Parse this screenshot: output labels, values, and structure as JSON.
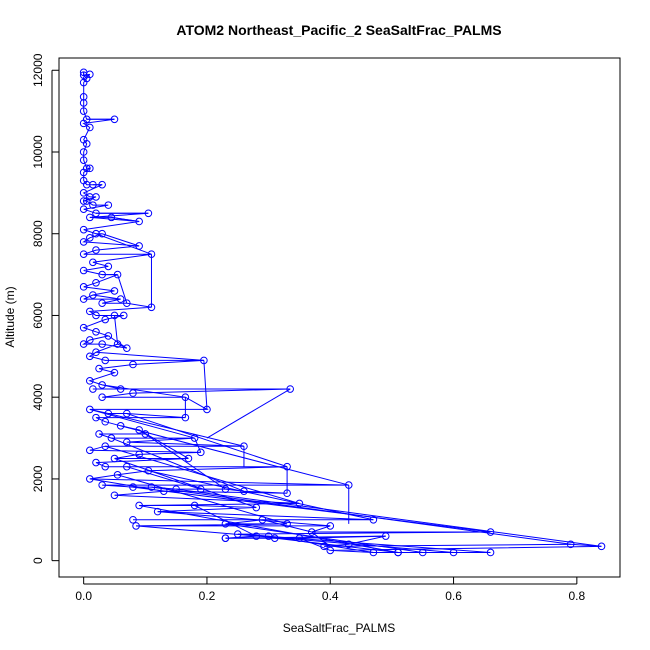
{
  "chart_data": {
    "type": "line",
    "title": "ATOM2 Northeast_Pacific_2 SeaSaltFrac_PALMS",
    "xlabel": "SeaSaltFrac_PALMS",
    "ylabel": "Altitude (m)",
    "xlim": [
      -0.04,
      0.87
    ],
    "ylim": [
      -400,
      12300
    ],
    "x_ticks": [
      0.0,
      0.2,
      0.4,
      0.6,
      0.8
    ],
    "x_tick_labels": [
      "0.0",
      "0.2",
      "0.4",
      "0.6",
      "0.8"
    ],
    "y_ticks": [
      0,
      2000,
      4000,
      6000,
      8000,
      10000,
      12000
    ],
    "y_tick_labels": [
      "0",
      "2000",
      "4000",
      "6000",
      "8000",
      "10000",
      "12000"
    ],
    "series": [
      {
        "color": "#0000ff",
        "marker": "open-circle",
        "points": [
          [
            0.0,
            11950
          ],
          [
            0.0,
            11880
          ],
          [
            0.005,
            11800
          ],
          [
            0.01,
            11900
          ],
          [
            0.0,
            11700
          ],
          [
            0.0,
            11350
          ],
          [
            0.0,
            11200
          ],
          [
            0.0,
            11000
          ],
          [
            0.005,
            10800
          ],
          [
            0.05,
            10800
          ],
          [
            0.0,
            10700
          ],
          [
            0.01,
            10600
          ],
          [
            0.0,
            10300
          ],
          [
            0.005,
            10200
          ],
          [
            0.0,
            10000
          ],
          [
            0.0,
            9800
          ],
          [
            0.005,
            9600
          ],
          [
            0.01,
            9600
          ],
          [
            0.0,
            9500
          ],
          [
            0.0,
            9300
          ],
          [
            0.005,
            9200
          ],
          [
            0.015,
            9200
          ],
          [
            0.03,
            9200
          ],
          [
            0.0,
            9000
          ],
          [
            0.01,
            8900
          ],
          [
            0.02,
            8900
          ],
          [
            0.0,
            8800
          ],
          [
            0.005,
            8800
          ],
          [
            0.015,
            8700
          ],
          [
            0.04,
            8700
          ],
          [
            0.0,
            8600
          ],
          [
            0.02,
            8500
          ],
          [
            0.105,
            8500
          ],
          [
            0.01,
            8400
          ],
          [
            0.045,
            8400
          ],
          [
            0.09,
            8300
          ],
          [
            0.0,
            8100
          ],
          [
            0.02,
            8000
          ],
          [
            0.03,
            8000
          ],
          [
            0.01,
            7900
          ],
          [
            0.0,
            7800
          ],
          [
            0.09,
            7700
          ],
          [
            0.02,
            7600
          ],
          [
            0.0,
            7500
          ],
          [
            0.11,
            7500
          ],
          [
            0.015,
            7300
          ],
          [
            0.04,
            7200
          ],
          [
            0.0,
            7100
          ],
          [
            0.03,
            7000
          ],
          [
            0.055,
            7000
          ],
          [
            0.02,
            6800
          ],
          [
            0.0,
            6700
          ],
          [
            0.05,
            6600
          ],
          [
            0.015,
            6500
          ],
          [
            0.0,
            6400
          ],
          [
            0.06,
            6400
          ],
          [
            0.03,
            6300
          ],
          [
            0.07,
            6300
          ],
          [
            0.11,
            6200
          ],
          [
            0.01,
            6100
          ],
          [
            0.02,
            6000
          ],
          [
            0.05,
            6000
          ],
          [
            0.065,
            6000
          ],
          [
            0.035,
            5900
          ],
          [
            0.0,
            5700
          ],
          [
            0.02,
            5600
          ],
          [
            0.04,
            5500
          ],
          [
            0.01,
            5400
          ],
          [
            0.0,
            5300
          ],
          [
            0.03,
            5300
          ],
          [
            0.07,
            5200
          ],
          [
            0.055,
            5300
          ],
          [
            0.02,
            5100
          ],
          [
            0.01,
            5000
          ],
          [
            0.035,
            4900
          ],
          [
            0.195,
            4900
          ],
          [
            0.08,
            4800
          ],
          [
            0.025,
            4700
          ],
          [
            0.05,
            4600
          ],
          [
            0.01,
            4400
          ],
          [
            0.03,
            4300
          ],
          [
            0.06,
            4200
          ],
          [
            0.015,
            4200
          ],
          [
            0.335,
            4200
          ],
          [
            0.08,
            4100
          ],
          [
            0.03,
            4000
          ],
          [
            0.165,
            4000
          ],
          [
            0.2,
            3700
          ],
          [
            0.01,
            3700
          ],
          [
            0.04,
            3600
          ],
          [
            0.07,
            3600
          ],
          [
            0.165,
            3500
          ],
          [
            0.02,
            3500
          ],
          [
            0.035,
            3400
          ],
          [
            0.06,
            3300
          ],
          [
            0.09,
            3200
          ],
          [
            0.1,
            3100
          ],
          [
            0.025,
            3100
          ],
          [
            0.045,
            3000
          ],
          [
            0.18,
            3000
          ],
          [
            0.07,
            2900
          ],
          [
            0.26,
            2800
          ],
          [
            0.035,
            2800
          ],
          [
            0.01,
            2700
          ],
          [
            0.19,
            2650
          ],
          [
            0.09,
            2600
          ],
          [
            0.05,
            2500
          ],
          [
            0.17,
            2500
          ],
          [
            0.02,
            2400
          ],
          [
            0.035,
            2300
          ],
          [
            0.07,
            2300
          ],
          [
            0.33,
            2300
          ],
          [
            0.105,
            2200
          ],
          [
            0.055,
            2100
          ],
          [
            0.01,
            2000
          ],
          [
            0.43,
            1850
          ],
          [
            0.03,
            1850
          ],
          [
            0.08,
            1800
          ],
          [
            0.11,
            1800
          ],
          [
            0.15,
            1750
          ],
          [
            0.19,
            1750
          ],
          [
            0.23,
            1750
          ],
          [
            0.26,
            1700
          ],
          [
            0.33,
            1650
          ],
          [
            0.13,
            1700
          ],
          [
            0.05,
            1600
          ],
          [
            0.35,
            1400
          ],
          [
            0.09,
            1350
          ],
          [
            0.18,
            1350
          ],
          [
            0.28,
            1300
          ],
          [
            0.12,
            1200
          ],
          [
            0.47,
            1000
          ],
          [
            0.08,
            1000
          ],
          [
            0.29,
            1000
          ],
          [
            0.23,
            900
          ],
          [
            0.33,
            900
          ],
          [
            0.085,
            850
          ],
          [
            0.4,
            850
          ],
          [
            0.37,
            700
          ],
          [
            0.66,
            700
          ],
          [
            0.25,
            650
          ],
          [
            0.3,
            600
          ],
          [
            0.28,
            600
          ],
          [
            0.23,
            550
          ],
          [
            0.23,
            550
          ],
          [
            0.31,
            550
          ],
          [
            0.35,
            550
          ],
          [
            0.49,
            600
          ],
          [
            0.43,
            400
          ],
          [
            0.39,
            350
          ],
          [
            0.79,
            400
          ],
          [
            0.84,
            350
          ],
          [
            0.4,
            250
          ],
          [
            0.47,
            200
          ],
          [
            0.51,
            200
          ],
          [
            0.51,
            200
          ],
          [
            0.55,
            200
          ],
          [
            0.6,
            200
          ],
          [
            0.66,
            200
          ]
        ],
        "segments": [
          [
            [
              0.0,
              11950
            ],
            [
              0.0,
              11880
            ]
          ],
          [
            [
              0.0,
              11880
            ],
            [
              0.01,
              11900
            ]
          ],
          [
            [
              0.005,
              10800
            ],
            [
              0.05,
              10800
            ]
          ],
          [
            [
              0.015,
              9200
            ],
            [
              0.03,
              9200
            ]
          ],
          [
            [
              0.02,
              8500
            ],
            [
              0.105,
              8500
            ]
          ],
          [
            [
              0.01,
              8400
            ],
            [
              0.09,
              8300
            ]
          ],
          [
            [
              0.045,
              8400
            ],
            [
              0.09,
              8300
            ]
          ],
          [
            [
              0.03,
              8000
            ],
            [
              0.09,
              7700
            ]
          ],
          [
            [
              0.02,
              8000
            ],
            [
              0.11,
              7500
            ]
          ],
          [
            [
              0.11,
              7500
            ],
            [
              0.11,
              6200
            ]
          ],
          [
            [
              0.03,
              7000
            ],
            [
              0.055,
              7000
            ]
          ],
          [
            [
              0.055,
              7000
            ],
            [
              0.07,
              6300
            ]
          ],
          [
            [
              0.015,
              6500
            ],
            [
              0.06,
              6400
            ]
          ],
          [
            [
              0.02,
              6000
            ],
            [
              0.065,
              6000
            ]
          ],
          [
            [
              0.05,
              6000
            ],
            [
              0.055,
              5300
            ]
          ],
          [
            [
              0.04,
              5500
            ],
            [
              0.07,
              5200
            ]
          ],
          [
            [
              0.02,
              5100
            ],
            [
              0.195,
              4900
            ]
          ],
          [
            [
              0.195,
              4900
            ],
            [
              0.2,
              3700
            ]
          ],
          [
            [
              0.03,
              4300
            ],
            [
              0.165,
              4000
            ]
          ],
          [
            [
              0.165,
              4000
            ],
            [
              0.165,
              3500
            ]
          ],
          [
            [
              0.015,
              4200
            ],
            [
              0.335,
              4200
            ]
          ],
          [
            [
              0.335,
              4200
            ],
            [
              0.2,
              3000
            ]
          ],
          [
            [
              0.01,
              3700
            ],
            [
              0.18,
              3000
            ]
          ],
          [
            [
              0.18,
              3000
            ],
            [
              0.19,
              2650
            ]
          ],
          [
            [
              0.04,
              3600
            ],
            [
              0.26,
              2800
            ]
          ],
          [
            [
              0.26,
              2800
            ],
            [
              0.26,
              2300
            ]
          ],
          [
            [
              0.07,
              3600
            ],
            [
              0.33,
              2300
            ]
          ],
          [
            [
              0.33,
              2300
            ],
            [
              0.33,
              1650
            ]
          ],
          [
            [
              0.06,
              3300
            ],
            [
              0.43,
              1850
            ]
          ],
          [
            [
              0.43,
              1850
            ],
            [
              0.43,
              900
            ]
          ],
          [
            [
              0.09,
              3200
            ],
            [
              0.17,
              2500
            ]
          ],
          [
            [
              0.1,
              3100
            ],
            [
              0.23,
              1750
            ]
          ],
          [
            [
              0.045,
              3000
            ],
            [
              0.26,
              1700
            ]
          ],
          [
            [
              0.035,
              2800
            ],
            [
              0.35,
              1400
            ]
          ],
          [
            [
              0.05,
              2500
            ],
            [
              0.28,
              1300
            ]
          ],
          [
            [
              0.07,
              2300
            ],
            [
              0.19,
              1750
            ]
          ],
          [
            [
              0.105,
              2200
            ],
            [
              0.47,
              1000
            ]
          ],
          [
            [
              0.055,
              2100
            ],
            [
              0.33,
              900
            ]
          ],
          [
            [
              0.01,
              2000
            ],
            [
              0.13,
              1700
            ]
          ],
          [
            [
              0.08,
              1800
            ],
            [
              0.66,
              700
            ]
          ],
          [
            [
              0.11,
              1800
            ],
            [
              0.79,
              400
            ]
          ],
          [
            [
              0.15,
              1750
            ],
            [
              0.84,
              350
            ]
          ],
          [
            [
              0.12,
              1200
            ],
            [
              0.4,
              850
            ]
          ],
          [
            [
              0.09,
              1350
            ],
            [
              0.51,
              200
            ]
          ],
          [
            [
              0.085,
              850
            ],
            [
              0.6,
              200
            ]
          ],
          [
            [
              0.23,
              900
            ],
            [
              0.55,
              200
            ]
          ],
          [
            [
              0.23,
              550
            ],
            [
              0.49,
              600
            ]
          ],
          [
            [
              0.25,
              650
            ],
            [
              0.66,
              200
            ]
          ],
          [
            [
              0.3,
              600
            ],
            [
              0.47,
              200
            ]
          ],
          [
            [
              0.29,
              1000
            ],
            [
              0.37,
              700
            ]
          ],
          [
            [
              0.37,
              700
            ],
            [
              0.4,
              350
            ]
          ],
          [
            [
              0.18,
              1350
            ],
            [
              0.28,
              600
            ]
          ],
          [
            [
              0.35,
              550
            ],
            [
              0.4,
              250
            ]
          ],
          [
            [
              0.31,
              550
            ],
            [
              0.51,
              200
            ]
          ]
        ]
      }
    ],
    "grid": false,
    "legend": "none"
  }
}
